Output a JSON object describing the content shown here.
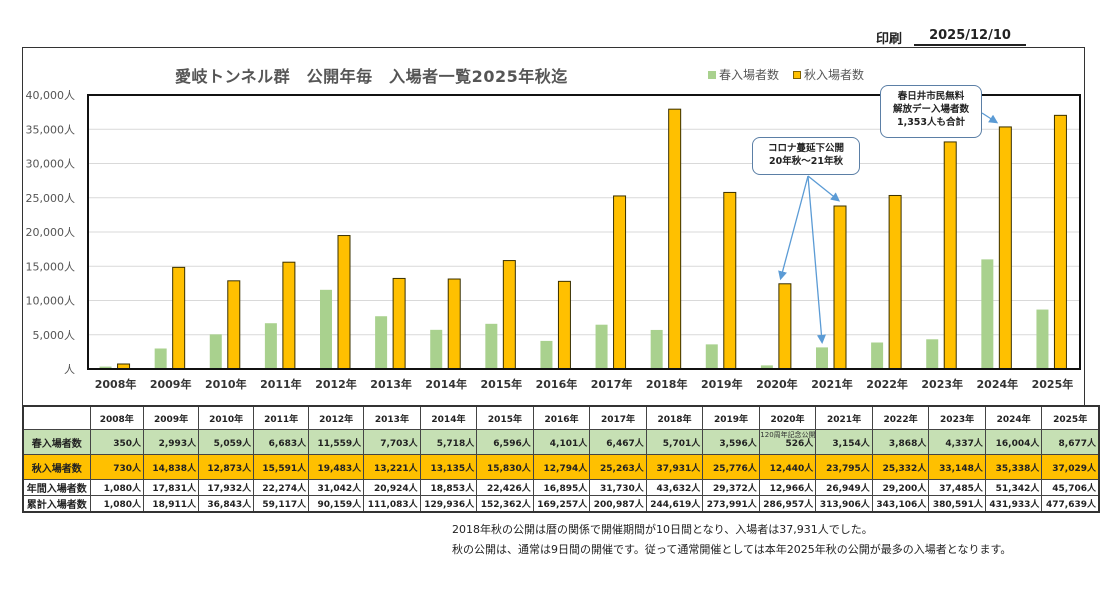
{
  "header": {
    "print_label": "印刷",
    "print_date": "2025/12/10"
  },
  "chart_data": {
    "type": "bar",
    "title": "愛岐トンネル群　公開年毎　入場者一覧2025年秋迄",
    "xlabel": "",
    "ylabel": "",
    "ylim": [
      0,
      40000
    ],
    "yticks": [
      0,
      5000,
      10000,
      15000,
      20000,
      25000,
      30000,
      35000,
      40000
    ],
    "ytick_labels": [
      "人",
      "5,000人",
      "10,000人",
      "15,000人",
      "20,000人",
      "25,000人",
      "30,000人",
      "35,000人",
      "40,000人"
    ],
    "grid": true,
    "legend_position": "top-right",
    "categories": [
      "2008年",
      "2009年",
      "2010年",
      "2011年",
      "2012年",
      "2013年",
      "2014年",
      "2015年",
      "2016年",
      "2017年",
      "2018年",
      "2019年",
      "2020年",
      "2021年",
      "2022年",
      "2023年",
      "2024年",
      "2025年"
    ],
    "series": [
      {
        "name": "春入場者数",
        "color": "#a9d18e",
        "values": [
          350,
          2993,
          5059,
          6683,
          11559,
          7703,
          5718,
          6596,
          4101,
          6467,
          5701,
          3596,
          526,
          3154,
          3868,
          4337,
          16004,
          8677
        ]
      },
      {
        "name": "秋入場者数",
        "color": "#ffc000",
        "values": [
          730,
          14838,
          12873,
          15591,
          19483,
          13221,
          13135,
          15830,
          12794,
          25263,
          37931,
          25776,
          12440,
          23795,
          25332,
          33148,
          35338,
          37029
        ]
      }
    ],
    "annotations": [
      {
        "text_lines": [
          "コロナ蔓延下公開",
          "20年秋～21年秋"
        ],
        "points_to": [
          "2020年 秋入場者数",
          "2021年 春入場者数",
          "2021年 秋入場者数"
        ]
      },
      {
        "text_lines": [
          "春日井市民無料",
          "解放デー入場者数",
          "1,353人も合計"
        ],
        "points_to": [
          "2024年 秋入場者数"
        ]
      }
    ]
  },
  "table": {
    "years": [
      "2008年",
      "2009年",
      "2010年",
      "2011年",
      "2012年",
      "2013年",
      "2014年",
      "2015年",
      "2016年",
      "2017年",
      "2018年",
      "2019年",
      "2020年",
      "2021年",
      "2022年",
      "2023年",
      "2024年",
      "2025年"
    ],
    "rows": [
      {
        "label": "春入場者数",
        "values": [
          "350人",
          "2,993人",
          "5,059人",
          "6,683人",
          "11,559人",
          "7,703人",
          "5,718人",
          "6,596人",
          "4,101人",
          "6,467人",
          "5,701人",
          "3,596人",
          "526人",
          "3,154人",
          "3,868人",
          "4,337人",
          "16,004人",
          "8,677人"
        ]
      },
      {
        "label": "秋入場者数",
        "values": [
          "730人",
          "14,838人",
          "12,873人",
          "15,591人",
          "19,483人",
          "13,221人",
          "13,135人",
          "15,830人",
          "12,794人",
          "25,263人",
          "37,931人",
          "25,776人",
          "12,440人",
          "23,795人",
          "25,332人",
          "33,148人",
          "35,338人",
          "37,029人"
        ]
      },
      {
        "label": "年間入場者数",
        "values": [
          "1,080人",
          "17,831人",
          "17,932人",
          "22,274人",
          "31,042人",
          "20,924人",
          "18,853人",
          "22,426人",
          "16,895人",
          "31,730人",
          "43,632人",
          "29,372人",
          "12,966人",
          "26,949人",
          "29,200人",
          "37,485人",
          "51,342人",
          "45,706人"
        ]
      },
      {
        "label": "累計入場者数",
        "values": [
          "1,080人",
          "18,911人",
          "36,843人",
          "59,117人",
          "90,159人",
          "111,083人",
          "129,936人",
          "152,362人",
          "169,257人",
          "200,987人",
          "244,619人",
          "273,991人",
          "286,957人",
          "313,906人",
          "343,106人",
          "380,591人",
          "431,933人",
          "477,639人"
        ]
      }
    ],
    "note_2020": "120周年記念公開"
  },
  "footnotes": [
    "2018年秋の公開は暦の関係で開催期間が10日間となり、入場者は37,931人でした。",
    "秋の公開は、通常は9日間の開催です。従って通常開催としては本年2025年秋の公開が最多の入場者となります。"
  ]
}
